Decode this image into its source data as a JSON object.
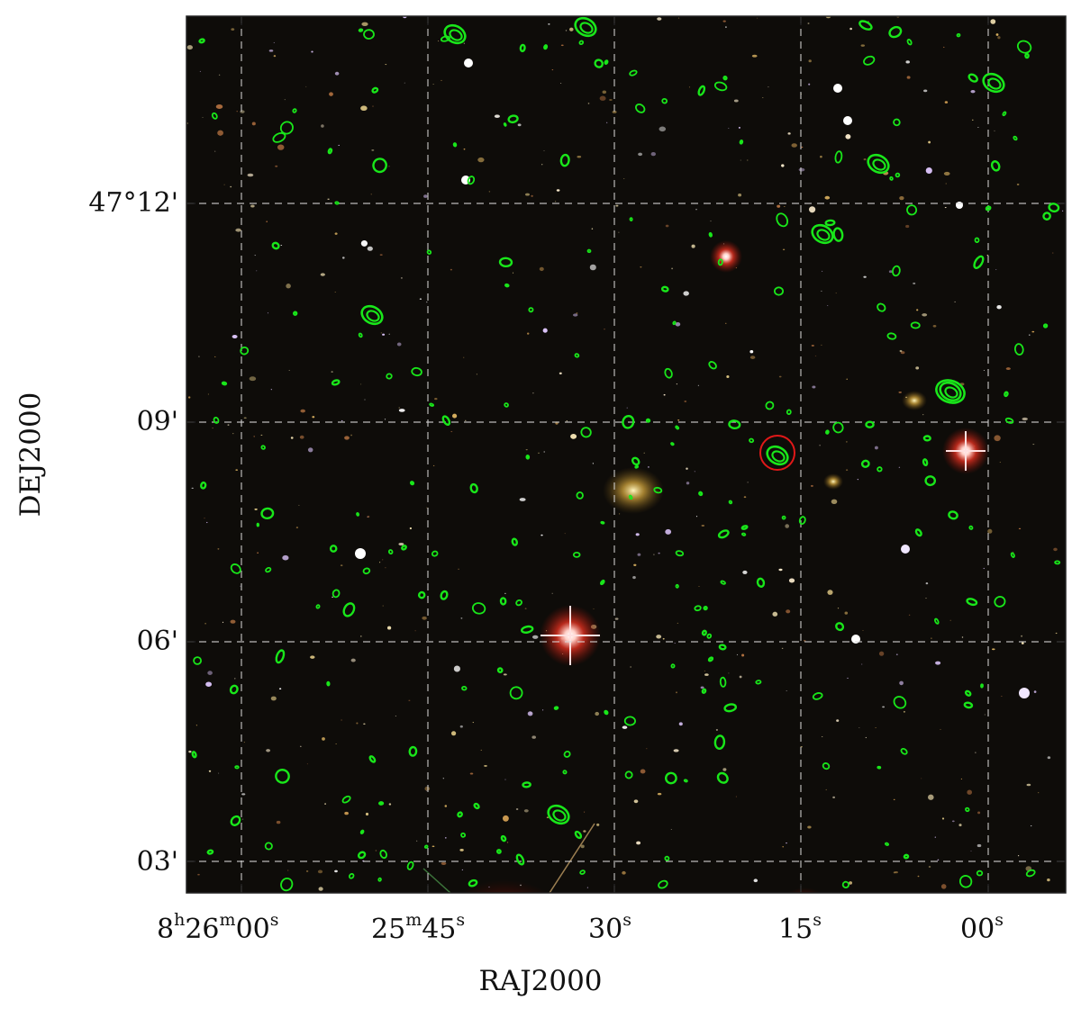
{
  "figure": {
    "xlabel": "RAJ2000",
    "ylabel": "DEJ2000",
    "x_ticks": [
      {
        "h": "8",
        "m": "26",
        "s": "00"
      },
      {
        "m": "25",
        "s": "45"
      },
      {
        "s": "30"
      },
      {
        "s": "15"
      },
      {
        "s": "00"
      }
    ],
    "y_ticks": [
      "47°12'",
      "09'",
      "06'",
      "03'"
    ],
    "contour_color": "#19e61a",
    "marker_color": "#e01818",
    "grid_color": "#d8d8d8",
    "sky_color": "#0e0c09",
    "bright_star_color": "#ff3a2a"
  }
}
